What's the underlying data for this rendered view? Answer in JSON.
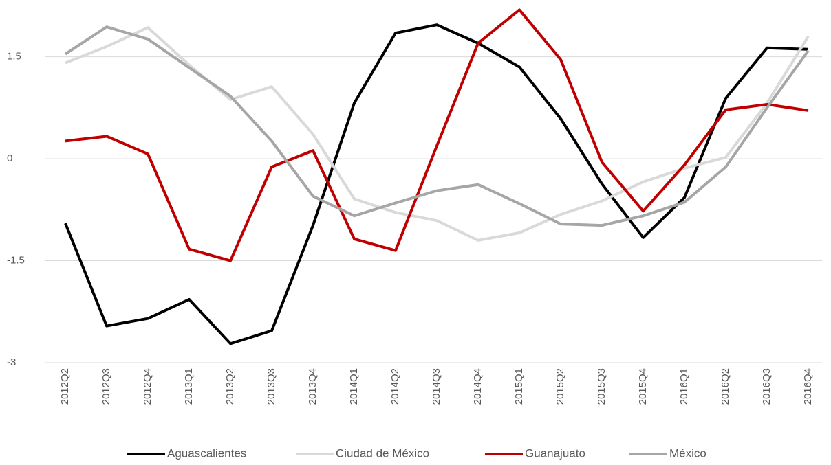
{
  "chart_data": {
    "type": "line",
    "categories": [
      "2012Q2",
      "2012Q3",
      "2012Q4",
      "2013Q1",
      "2013Q2",
      "2013Q3",
      "2013Q4",
      "2014Q1",
      "2014Q2",
      "2014Q3",
      "2014Q4",
      "2015Q1",
      "2015Q2",
      "2015Q3",
      "2015Q4",
      "2016Q1",
      "2016Q2",
      "2016Q3",
      "2016Q4"
    ],
    "series": [
      {
        "name": "Aguascalientes",
        "color": "#000000",
        "values": [
          -0.95,
          -2.46,
          -2.35,
          -2.07,
          -2.72,
          -2.53,
          -0.98,
          0.82,
          1.85,
          1.97,
          1.7,
          1.35,
          0.59,
          -0.37,
          -1.16,
          -0.57,
          0.89,
          1.63,
          1.61
        ]
      },
      {
        "name": "Ciudad de México",
        "color": "#d9d9d9",
        "values": [
          1.41,
          1.65,
          1.93,
          1.38,
          0.87,
          1.06,
          0.36,
          -0.59,
          -0.79,
          -0.91,
          -1.2,
          -1.09,
          -0.82,
          -0.62,
          -0.34,
          -0.14,
          0.02,
          0.82,
          1.8
        ]
      },
      {
        "name": "Guanajuato",
        "color": "#c00000",
        "values": [
          0.26,
          0.33,
          0.07,
          -1.33,
          -1.5,
          -0.12,
          0.12,
          -1.18,
          -1.35,
          0.19,
          1.7,
          2.19,
          1.46,
          -0.05,
          -0.77,
          -0.09,
          0.72,
          0.8,
          0.71
        ]
      },
      {
        "name": "México",
        "color": "#a6a6a6",
        "values": [
          1.54,
          1.94,
          1.76,
          1.34,
          0.92,
          0.26,
          -0.55,
          -0.84,
          -0.65,
          -0.47,
          -0.38,
          -0.66,
          -0.96,
          -0.98,
          -0.84,
          -0.64,
          -0.12,
          0.75,
          1.59
        ]
      }
    ],
    "ylim": [
      -3,
      2.3
    ],
    "yticks": [
      -3,
      -1.5,
      0,
      1.5
    ],
    "grid": true,
    "legend": "bottom"
  }
}
